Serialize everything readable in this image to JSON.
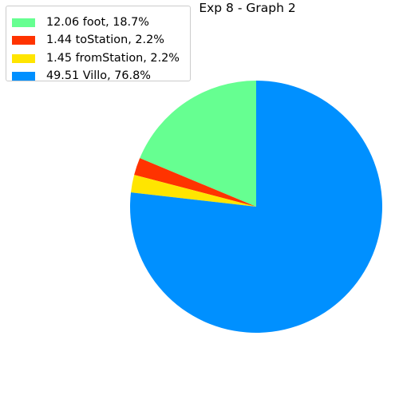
{
  "chart_data": {
    "type": "pie",
    "title": "Exp 8 - Graph 2",
    "start_angle_deg": 90,
    "direction": "counterclockwise",
    "legend_position": "top-left",
    "slices": [
      {
        "label": "12.06 foot, 18.7%",
        "value": 12.06,
        "percent": 18.7,
        "color": "#66ff91"
      },
      {
        "label": "1.44 toStation, 2.2%",
        "value": 1.44,
        "percent": 2.2,
        "color": "#ff3300"
      },
      {
        "label": "1.45 fromStation, 2.2%",
        "value": 1.45,
        "percent": 2.2,
        "color": "#ffe500"
      },
      {
        "label": "49.51 Villo, 76.8%",
        "value": 49.51,
        "percent": 76.8,
        "color": "#0090ff"
      }
    ]
  }
}
